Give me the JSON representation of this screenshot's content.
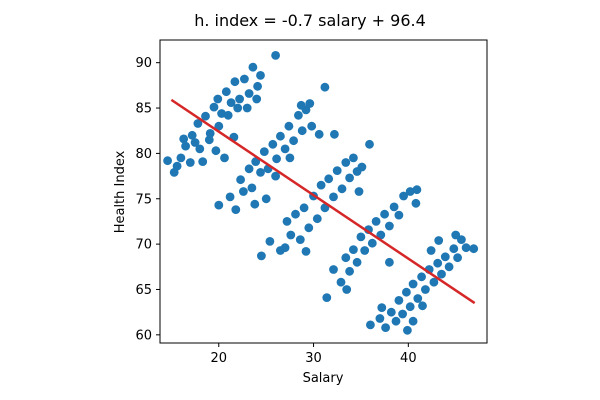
{
  "chart_data": {
    "type": "scatter",
    "title": "h. index = -0.7 salary + 96.4",
    "xlabel": "Salary",
    "ylabel": "Health Index",
    "xlim": [
      13.8,
      48.3
    ],
    "ylim": [
      59.1,
      92.5
    ],
    "xticks": [
      20,
      30,
      40
    ],
    "yticks": [
      60,
      65,
      70,
      75,
      80,
      85,
      90
    ],
    "grid": false,
    "legend": "none",
    "point_color": "#1f77b4",
    "trend_color": "#d62728",
    "trend_line": {
      "slope": -0.7,
      "intercept": 96.4,
      "x_start": 15,
      "x_end": 47
    },
    "points": [
      [
        14.6,
        79.2
      ],
      [
        15.3,
        77.9
      ],
      [
        15.6,
        78.6
      ],
      [
        16.0,
        79.5
      ],
      [
        16.3,
        81.6
      ],
      [
        17.0,
        79.0
      ],
      [
        16.5,
        80.8
      ],
      [
        17.2,
        82.0
      ],
      [
        17.8,
        83.3
      ],
      [
        18.3,
        79.1
      ],
      [
        18.6,
        84.1
      ],
      [
        19.1,
        82.2
      ],
      [
        19.5,
        85.1
      ],
      [
        19.9,
        86.0
      ],
      [
        20.3,
        84.4
      ],
      [
        20.8,
        86.8
      ],
      [
        21.3,
        85.6
      ],
      [
        21.7,
        87.9
      ],
      [
        22.2,
        86.0
      ],
      [
        22.7,
        88.2
      ],
      [
        23.2,
        86.6
      ],
      [
        23.6,
        89.5
      ],
      [
        24.1,
        87.4
      ],
      [
        24.4,
        88.6
      ],
      [
        20.0,
        83.0
      ],
      [
        21.0,
        84.2
      ],
      [
        22.0,
        85.0
      ],
      [
        19.0,
        81.5
      ],
      [
        18.0,
        80.5
      ],
      [
        17.5,
        81.2
      ],
      [
        26.0,
        90.8
      ],
      [
        20.6,
        79.5
      ],
      [
        21.6,
        81.8
      ],
      [
        23.0,
        85.0
      ],
      [
        24.0,
        86.0
      ],
      [
        19.7,
        80.3
      ],
      [
        20.0,
        74.3
      ],
      [
        21.2,
        75.2
      ],
      [
        21.8,
        73.8
      ],
      [
        22.3,
        77.1
      ],
      [
        22.6,
        75.8
      ],
      [
        23.2,
        78.3
      ],
      [
        23.5,
        76.2
      ],
      [
        23.9,
        79.1
      ],
      [
        24.4,
        77.9
      ],
      [
        24.8,
        80.2
      ],
      [
        25.2,
        78.3
      ],
      [
        25.7,
        81.0
      ],
      [
        26.1,
        79.4
      ],
      [
        26.5,
        81.9
      ],
      [
        27.0,
        80.5
      ],
      [
        27.4,
        83.0
      ],
      [
        27.9,
        81.4
      ],
      [
        28.4,
        84.2
      ],
      [
        28.8,
        82.5
      ],
      [
        29.2,
        84.8
      ],
      [
        29.8,
        83.0
      ],
      [
        30.6,
        82.1
      ],
      [
        32.2,
        82.1
      ],
      [
        29.6,
        85.5
      ],
      [
        28.7,
        85.3
      ],
      [
        24.5,
        68.7
      ],
      [
        25.0,
        75.0
      ],
      [
        26.0,
        77.5
      ],
      [
        27.5,
        79.5
      ],
      [
        23.8,
        74.4
      ],
      [
        25.4,
        70.3
      ],
      [
        26.5,
        69.3
      ],
      [
        27.2,
        72.5
      ],
      [
        27.6,
        71.0
      ],
      [
        28.1,
        73.3
      ],
      [
        28.6,
        70.5
      ],
      [
        29.0,
        74.0
      ],
      [
        29.5,
        71.8
      ],
      [
        30.0,
        75.3
      ],
      [
        30.4,
        72.8
      ],
      [
        30.8,
        76.5
      ],
      [
        31.2,
        74.0
      ],
      [
        31.6,
        77.2
      ],
      [
        32.1,
        75.2
      ],
      [
        32.5,
        78.1
      ],
      [
        33.0,
        76.1
      ],
      [
        33.4,
        79.0
      ],
      [
        33.8,
        77.3
      ],
      [
        34.2,
        79.5
      ],
      [
        34.6,
        78.0
      ],
      [
        35.1,
        78.5
      ],
      [
        35.9,
        81.0
      ],
      [
        31.2,
        87.3
      ],
      [
        29.2,
        69.2
      ],
      [
        27.0,
        69.6
      ],
      [
        34.8,
        75.8
      ],
      [
        31.4,
        64.1
      ],
      [
        32.1,
        67.2
      ],
      [
        32.9,
        65.8
      ],
      [
        33.4,
        68.5
      ],
      [
        33.8,
        67.0
      ],
      [
        34.2,
        69.4
      ],
      [
        34.6,
        68.0
      ],
      [
        35.0,
        70.8
      ],
      [
        35.4,
        69.3
      ],
      [
        35.8,
        71.6
      ],
      [
        36.2,
        70.1
      ],
      [
        36.6,
        72.5
      ],
      [
        37.1,
        71.0
      ],
      [
        37.5,
        73.3
      ],
      [
        38.0,
        72.0
      ],
      [
        38.5,
        74.1
      ],
      [
        39.0,
        73.2
      ],
      [
        39.5,
        75.3
      ],
      [
        40.2,
        75.8
      ],
      [
        40.8,
        74.5
      ],
      [
        40.9,
        76.0
      ],
      [
        33.5,
        65.0
      ],
      [
        36.0,
        61.1
      ],
      [
        37.2,
        63.0
      ],
      [
        38.0,
        68.0
      ],
      [
        37.0,
        61.8
      ],
      [
        37.6,
        60.8
      ],
      [
        38.2,
        62.5
      ],
      [
        38.7,
        61.5
      ],
      [
        39.0,
        63.8
      ],
      [
        39.4,
        62.3
      ],
      [
        39.8,
        64.7
      ],
      [
        40.2,
        63.1
      ],
      [
        40.5,
        65.6
      ],
      [
        41.0,
        64.0
      ],
      [
        41.4,
        66.4
      ],
      [
        41.8,
        65.0
      ],
      [
        42.2,
        67.2
      ],
      [
        42.7,
        65.8
      ],
      [
        43.1,
        67.9
      ],
      [
        43.5,
        66.7
      ],
      [
        43.9,
        68.6
      ],
      [
        44.3,
        67.5
      ],
      [
        44.8,
        69.5
      ],
      [
        45.2,
        68.5
      ],
      [
        45.6,
        70.5
      ],
      [
        46.1,
        69.6
      ],
      [
        46.9,
        69.5
      ],
      [
        45.0,
        71.0
      ],
      [
        43.2,
        70.4
      ],
      [
        39.9,
        60.5
      ],
      [
        40.5,
        61.5
      ],
      [
        42.4,
        69.3
      ],
      [
        41.5,
        63.2
      ]
    ]
  }
}
